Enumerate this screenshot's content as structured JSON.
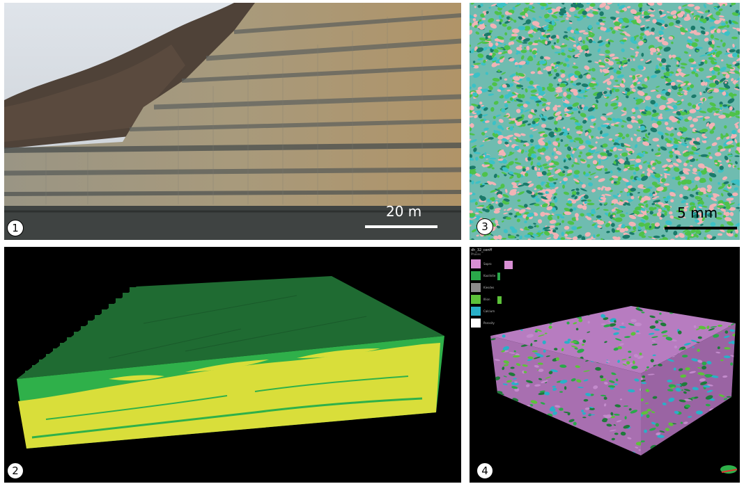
{
  "panels": {
    "p1": {
      "number": "1",
      "scale": "20 m"
    },
    "p2": {
      "number": "2"
    },
    "p3": {
      "number": "3",
      "scale": "5 mm"
    },
    "p4": {
      "number": "4",
      "legend_title": "dh_32_cenff",
      "legend_subtitle": "Phases",
      "legend_items": [
        {
          "label": "Sapro",
          "color": "#d88fd4"
        },
        {
          "label": "Kaolinite",
          "color": "#2aa84a"
        },
        {
          "label": "Kiesdes",
          "color": "#8b8b8b"
        },
        {
          "label": "Illion",
          "color": "#5cc23a"
        },
        {
          "label": "Calcium",
          "color": "#29b0c8"
        },
        {
          "label": "Porosity",
          "color": "#ffffff"
        }
      ]
    }
  },
  "colors": {
    "p2_top": "#1f6b32",
    "p2_side_green": "#2fb04a",
    "p2_side_yellow": "#d9de3a",
    "p3_pink": "#f2b3b6",
    "p3_green": "#4ec24a",
    "p3_dark_teal": "#1a7a6a",
    "p3_cyan": "#3cc1c6"
  }
}
